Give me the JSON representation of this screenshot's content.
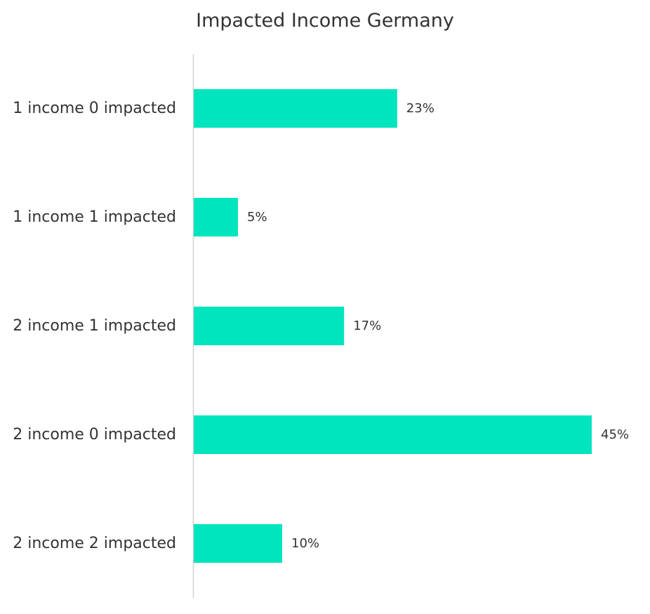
{
  "chart_data": {
    "type": "bar",
    "orientation": "horizontal",
    "title": "Impacted Income Germany",
    "categories": [
      "1 income 0 impacted",
      "1 income 1 impacted",
      "2 income 1 impacted",
      "2 income 0 impacted",
      "2 income 2 impacted"
    ],
    "values": [
      23,
      5,
      17,
      45,
      10
    ],
    "value_labels": [
      "23%",
      "5%",
      "17%",
      "45%",
      "10%"
    ],
    "value_unit": "%",
    "xlim": [
      0,
      45
    ],
    "grid": false,
    "legend": "none",
    "colors": {
      "bar": "#00E5BE",
      "axis": "#D0D0D0",
      "text": "#333333"
    }
  }
}
